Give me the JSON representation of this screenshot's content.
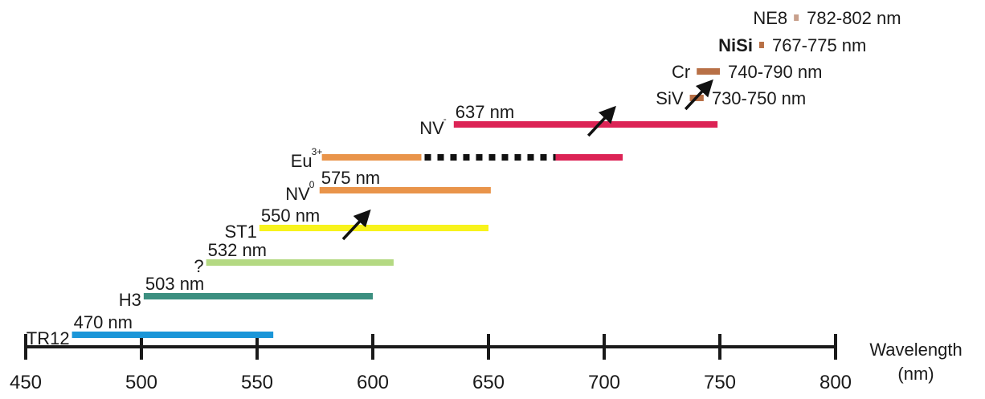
{
  "chart_data": {
    "type": "bar",
    "orientation": "horizontal-ranges",
    "xlabel": [
      "Wavelength",
      "(nm)"
    ],
    "xlim": [
      450,
      800
    ],
    "xticks": [
      450,
      500,
      550,
      600,
      650,
      700,
      750,
      800
    ],
    "grid": false,
    "legend": "none",
    "arrow_color": "#111111",
    "centers": [
      {
        "id": "tr12",
        "name": "TR12",
        "label": "470 nm",
        "start": 470,
        "end": 557,
        "color": "#1b96d8"
      },
      {
        "id": "h3",
        "name": "H3",
        "label": "503 nm",
        "start": 501,
        "end": 600,
        "color": "#3c8f80"
      },
      {
        "id": "unknown",
        "name": "?",
        "label": "532 nm",
        "start": 528,
        "end": 609,
        "color": "#b4d982"
      },
      {
        "id": "st1",
        "name": "ST1",
        "label": "550 nm",
        "start": 551,
        "end": 650,
        "color": "#f8f31c",
        "arrow_at": 592
      },
      {
        "id": "nv0",
        "name": "NV",
        "superscript": "0",
        "label": "575 nm",
        "start": 577,
        "end": 651,
        "color": "#e9944a"
      },
      {
        "id": "eu3",
        "name": "Eu",
        "superscript": "3+",
        "label": "",
        "start": 578,
        "end": 708,
        "segments": [
          {
            "start": 578,
            "end": 621,
            "color": "#e9944a",
            "style": "solid"
          },
          {
            "start": 621,
            "end": 679,
            "color": "#111111",
            "style": "dashed"
          },
          {
            "start": 679,
            "end": 708,
            "color": "#dc2355",
            "style": "solid"
          }
        ]
      },
      {
        "id": "nvm",
        "name": "NV",
        "superscript": "-",
        "label": "637 nm",
        "start": 635,
        "end": 749,
        "color": "#dc2355",
        "arrow_at": 698
      },
      {
        "id": "siv",
        "name": "SiV",
        "label": "730-750 nm",
        "start": 737,
        "end": 743,
        "color": "#b87046",
        "arrow_at": 740,
        "label_side": "right"
      },
      {
        "id": "cr",
        "name": "Cr",
        "label": "740-790 nm",
        "start": 740,
        "end": 750,
        "color": "#b87046",
        "label_side": "right"
      },
      {
        "id": "nisi",
        "name": "NiSi",
        "label": "767-775 nm",
        "start": 767,
        "end": 769,
        "color": "#b87046",
        "label_side": "right"
      },
      {
        "id": "ne8",
        "name": "NE8",
        "label": "782-802 nm",
        "start": 782,
        "end": 784,
        "color": "#c8a08c",
        "label_side": "right"
      }
    ]
  }
}
